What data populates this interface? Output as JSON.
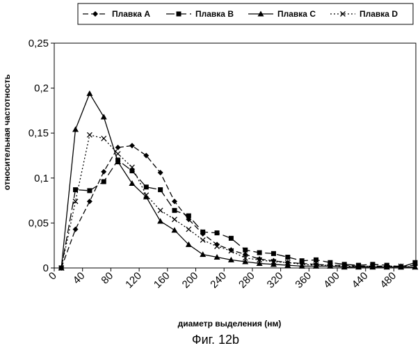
{
  "chart_data": {
    "type": "line",
    "title": "",
    "caption": "Фиг. 12b",
    "xlabel": "диаметр выделения (нм)",
    "ylabel": "относительная частотность",
    "xlim": [
      0,
      500
    ],
    "ylim": [
      0,
      0.25
    ],
    "x_ticks": [
      0,
      40,
      80,
      120,
      160,
      200,
      240,
      280,
      320,
      360,
      400,
      440,
      480
    ],
    "y_ticks": [
      0,
      0.05,
      0.1,
      0.15,
      0.2,
      0.25
    ],
    "x_tick_labels": [
      "0",
      "40",
      "80",
      "120",
      "160",
      "200",
      "240",
      "280",
      "320",
      "360",
      "400",
      "440",
      "480"
    ],
    "y_tick_labels": [
      "0",
      "0,05",
      "0,1",
      "0,15",
      "0,2",
      "0,25"
    ],
    "grid": false,
    "legend_position": "top",
    "x": [
      10,
      30,
      50,
      70,
      90,
      110,
      130,
      150,
      170,
      190,
      210,
      230,
      250,
      270,
      290,
      310,
      330,
      350,
      370,
      390,
      410,
      430,
      450,
      470,
      490,
      510
    ],
    "series": [
      {
        "name": "Плавка A",
        "marker": "diamond",
        "dash": "dash",
        "color": "#000000",
        "values": [
          0,
          0.043,
          0.074,
          0.107,
          0.134,
          0.136,
          0.125,
          0.106,
          0.074,
          0.054,
          0.038,
          0.026,
          0.02,
          0.015,
          0.01,
          0.008,
          0.006,
          0.005,
          0.004,
          0.003,
          0.003,
          0.002,
          0.002,
          0.002,
          0.002,
          0.003
        ]
      },
      {
        "name": "Плавка B",
        "marker": "square",
        "dash": "longdash",
        "color": "#000000",
        "values": [
          0,
          0.087,
          0.086,
          0.096,
          0.12,
          0.108,
          0.09,
          0.087,
          0.064,
          0.058,
          0.04,
          0.039,
          0.033,
          0.02,
          0.017,
          0.016,
          0.012,
          0.008,
          0.009,
          0.006,
          0.004,
          0.003,
          0.004,
          0.003,
          0.001,
          0.006
        ]
      },
      {
        "name": "Плавка C",
        "marker": "triangle",
        "dash": "solid",
        "color": "#000000",
        "values": [
          0,
          0.154,
          0.194,
          0.168,
          0.118,
          0.094,
          0.079,
          0.052,
          0.042,
          0.026,
          0.015,
          0.012,
          0.009,
          0.007,
          0.005,
          0.004,
          0.003,
          0.002,
          0.002,
          0.002,
          0.001,
          0.001,
          0.001,
          0.001,
          0.001,
          0.001
        ]
      },
      {
        "name": "Плавка D",
        "marker": "x",
        "dash": "dot",
        "color": "#000000",
        "values": [
          0,
          0.074,
          0.148,
          0.144,
          0.127,
          0.112,
          0.081,
          0.064,
          0.054,
          0.043,
          0.031,
          0.024,
          0.019,
          0.011,
          0.009,
          0.007,
          0.006,
          0.004,
          0.003,
          0.003,
          0.002,
          0.002,
          0.002,
          0.002,
          0.002,
          0.001
        ]
      }
    ]
  }
}
